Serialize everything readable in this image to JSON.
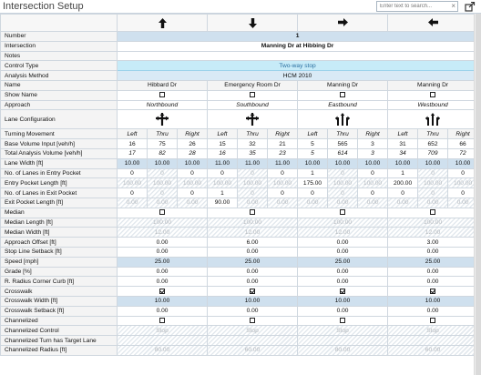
{
  "window": {
    "title": "Intersection Setup"
  },
  "search": {
    "placeholder": "Enter text to search...",
    "clear": "×"
  },
  "rows": {
    "number": {
      "label": "Number",
      "value": "1"
    },
    "intersection": {
      "label": "Intersection",
      "value": "Manning Dr at Hibbing Dr"
    },
    "notes": {
      "label": "Notes"
    },
    "control_type": {
      "label": "Control Type",
      "value": "Two-way stop"
    },
    "analysis_method": {
      "label": "Analysis Method",
      "value": "HCM 2010"
    },
    "name": {
      "label": "Name",
      "values": [
        "Hibbard Dr",
        "Emergency Room Dr",
        "Manning Dr",
        "Manning Dr"
      ]
    },
    "show_name": {
      "label": "Show Name"
    },
    "approach": {
      "label": "Approach",
      "values": [
        "Northbound",
        "Southbound",
        "Eastbound",
        "Westbound"
      ]
    },
    "lane_configuration": {
      "label": "Lane Configuration"
    },
    "turning_movement": {
      "label": "Turning Movement",
      "values": [
        "Left",
        "Thru",
        "Right",
        "Left",
        "Thru",
        "Right",
        "Left",
        "Thru",
        "Right",
        "Left",
        "Thru",
        "Right"
      ]
    },
    "base_volume": {
      "label": "Base Volume Input [veh/h]",
      "values": [
        "16",
        "75",
        "26",
        "15",
        "32",
        "21",
        "5",
        "565",
        "3",
        "31",
        "652",
        "66"
      ]
    },
    "total_volume": {
      "label": "Total Analysis Volume [veh/h]",
      "values": [
        "17",
        "82",
        "28",
        "16",
        "35",
        "23",
        "5",
        "614",
        "3",
        "34",
        "709",
        "72"
      ]
    },
    "lane_width": {
      "label": "Lane Width [ft]",
      "values": [
        "10.00",
        "10.00",
        "10.00",
        "11.00",
        "11.00",
        "11.00",
        "10.00",
        "10.00",
        "10.00",
        "10.00",
        "10.00",
        "10.00"
      ]
    },
    "lanes_entry": {
      "label": "No. of Lanes in Entry Pocket",
      "values": [
        "0",
        "0",
        "0",
        "0",
        "0",
        "0",
        "1",
        "0",
        "0",
        "1",
        "0",
        "0"
      ]
    },
    "entry_pocket_length": {
      "label": "Entry Pocket Length [ft]",
      "values": [
        "100.00",
        "100.00",
        "100.00",
        "100.00",
        "100.00",
        "100.00",
        "175.00",
        "100.00",
        "100.00",
        "200.00",
        "100.00",
        "100.00"
      ]
    },
    "lanes_exit": {
      "label": "No. of Lanes in Exit Pocket",
      "values": [
        "0",
        "0",
        "0",
        "1",
        "0",
        "0",
        "0",
        "0",
        "0",
        "0",
        "0",
        "0"
      ]
    },
    "exit_pocket_length": {
      "label": "Exit Pocket Length [ft]",
      "values": [
        "0.00",
        "0.00",
        "0.00",
        "90.00",
        "0.00",
        "0.00",
        "0.00",
        "0.00",
        "0.00",
        "0.00",
        "0.00",
        "0.00"
      ]
    },
    "median": {
      "label": "Median"
    },
    "median_length": {
      "label": "Median Length [ft]",
      "values": [
        "100.00",
        "100.00",
        "100.00",
        "100.00"
      ]
    },
    "median_width": {
      "label": "Median Width [ft]",
      "values": [
        "12.00",
        "12.00",
        "12.00",
        "12.00"
      ]
    },
    "approach_offset": {
      "label": "Approach Offset [ft]",
      "values": [
        "0.00",
        "6.00",
        "0.00",
        "3.00"
      ]
    },
    "stop_line_setback": {
      "label": "Stop Line Setback [ft]",
      "values": [
        "0.00",
        "0.00",
        "0.00",
        "0.00"
      ]
    },
    "speed": {
      "label": "Speed [mph]",
      "values": [
        "25.00",
        "25.00",
        "25.00",
        "25.00"
      ]
    },
    "grade": {
      "label": "Grade [%]",
      "values": [
        "0.00",
        "0.00",
        "0.00",
        "0.00"
      ]
    },
    "radius_corner_curb": {
      "label": "R. Radius Corner Curb [ft]",
      "values": [
        "0.00",
        "0.00",
        "0.00",
        "0.00"
      ]
    },
    "crosswalk": {
      "label": "Crosswalk"
    },
    "crosswalk_width": {
      "label": "Crosswalk Width [ft]",
      "values": [
        "10.00",
        "10.00",
        "10.00",
        "10.00"
      ]
    },
    "crosswalk_setback": {
      "label": "Crosswalk Setback [ft]",
      "values": [
        "0.00",
        "0.00",
        "0.00",
        "0.00"
      ]
    },
    "channelized": {
      "label": "Channelized"
    },
    "channelized_control": {
      "label": "Channelized Control",
      "values": [
        "Stop",
        "Stop",
        "Stop",
        "Stop"
      ]
    },
    "channelized_turn": {
      "label": "Channelized Turn has Target Lane"
    },
    "channelized_radius": {
      "label": "Channelized Radius [ft]",
      "values": [
        "80.00",
        "60.00",
        "80.00",
        "60.00"
      ]
    }
  },
  "icons": {
    "directions": [
      "arrow-up-icon",
      "arrow-down-icon",
      "arrow-right-icon",
      "arrow-left-icon"
    ]
  },
  "colors": {
    "blue_cell": "#cfe0ee",
    "cyan_cell": "#c7ebf8",
    "label_bg": "#f4f4f4"
  }
}
